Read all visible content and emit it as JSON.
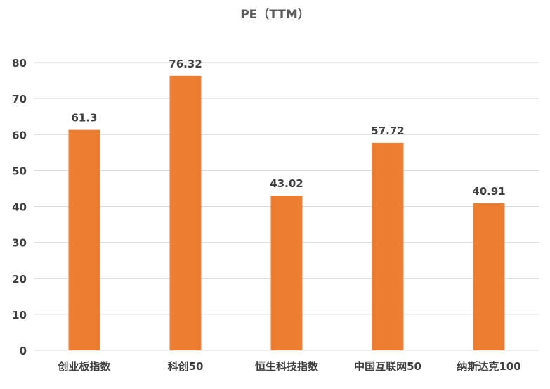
{
  "chart_data": {
    "type": "bar",
    "title": "PE（TTM）",
    "categories": [
      "创业板指数",
      "科创50",
      "恒生科技指数",
      "中国互联网50",
      "纳斯达克100"
    ],
    "values": [
      61.3,
      76.32,
      43.02,
      57.72,
      40.91
    ],
    "data_labels": [
      "61.3",
      "76.32",
      "43.02",
      "57.72",
      "40.91"
    ],
    "ylim": [
      0,
      80
    ],
    "yticks": [
      0,
      10,
      20,
      30,
      40,
      50,
      60,
      70,
      80
    ],
    "xlabel": "",
    "ylabel": "",
    "grid": true,
    "legend": "none",
    "colors": {
      "bar": "#ED7D31",
      "grid": "#D9D9D9",
      "axis_text": "#404040",
      "label_text": "#404040",
      "title_text": "#595959"
    }
  }
}
